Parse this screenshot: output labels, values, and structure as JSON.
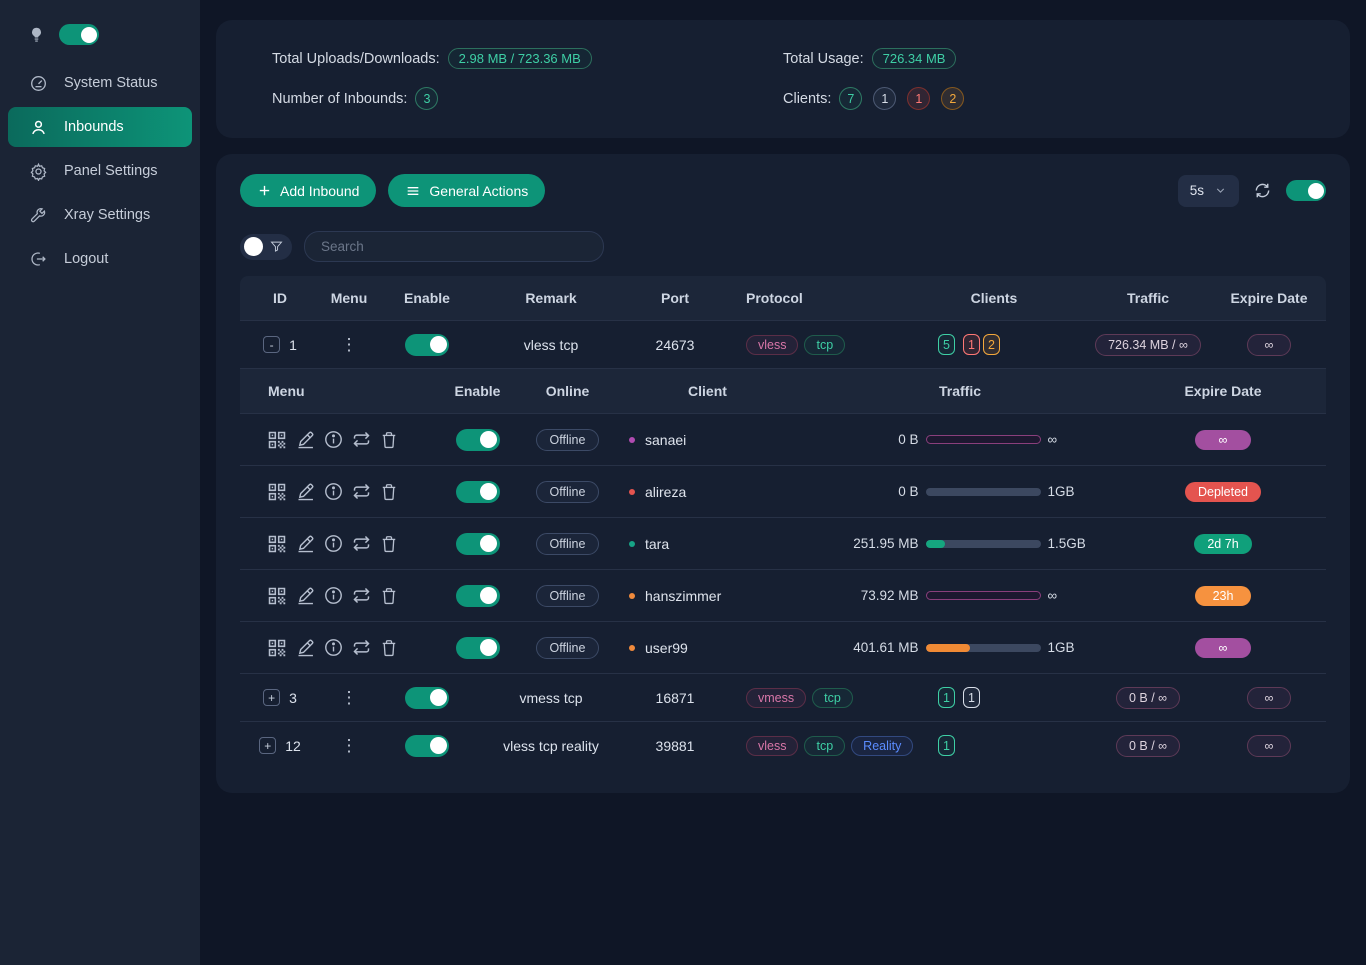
{
  "sidebar": {
    "theme_toggle_on": true,
    "items": [
      {
        "label": "System Status",
        "icon": "dashboard-icon",
        "active": false
      },
      {
        "label": "Inbounds",
        "icon": "user-icon",
        "active": true
      },
      {
        "label": "Panel Settings",
        "icon": "gear-icon",
        "active": false
      },
      {
        "label": "Xray Settings",
        "icon": "wrench-icon",
        "active": false
      },
      {
        "label": "Logout",
        "icon": "logout-icon",
        "active": false
      }
    ]
  },
  "summary": {
    "uploads_label": "Total Uploads/Downloads:",
    "uploads_value": "2.98 MB / 723.36 MB",
    "inbounds_label": "Number of Inbounds:",
    "inbounds_value": "3",
    "usage_label": "Total Usage:",
    "usage_value": "726.34 MB",
    "clients_label": "Clients:",
    "client_counts": [
      {
        "value": "7",
        "color": "green"
      },
      {
        "value": "1",
        "color": "gray"
      },
      {
        "value": "1",
        "color": "red"
      },
      {
        "value": "2",
        "color": "orange"
      }
    ]
  },
  "toolbar": {
    "add_inbound": "Add Inbound",
    "general_actions": "General Actions",
    "refresh_interval": "5s",
    "auto_refresh_on": true
  },
  "search": {
    "placeholder": "Search"
  },
  "table": {
    "headers": [
      "ID",
      "Menu",
      "Enable",
      "Remark",
      "Port",
      "Protocol",
      "Clients",
      "Traffic",
      "Expire Date"
    ],
    "menu_dots": "⋮",
    "rows": [
      {
        "id": "1",
        "expander": "-",
        "enabled": true,
        "remark": "vless tcp",
        "port": "24673",
        "protocols": [
          {
            "label": "vless",
            "style": "pink"
          },
          {
            "label": "tcp",
            "style": "green"
          }
        ],
        "clients": [
          {
            "value": "5",
            "color": "green"
          },
          {
            "value": "1",
            "color": "red"
          },
          {
            "value": "2",
            "color": "orange"
          }
        ],
        "traffic": "726.34 MB / ∞",
        "expire": "∞",
        "expanded": true
      },
      {
        "id": "3",
        "expander": "+",
        "enabled": true,
        "remark": "vmess tcp",
        "port": "16871",
        "protocols": [
          {
            "label": "vmess",
            "style": "pink"
          },
          {
            "label": "tcp",
            "style": "green"
          }
        ],
        "clients": [
          {
            "value": "1",
            "color": "green"
          },
          {
            "value": "1",
            "color": "gray"
          }
        ],
        "traffic": "0 B / ∞",
        "expire": "∞",
        "expanded": false
      },
      {
        "id": "12",
        "expander": "+",
        "enabled": true,
        "remark": "vless tcp reality",
        "port": "39881",
        "protocols": [
          {
            "label": "vless",
            "style": "pink"
          },
          {
            "label": "tcp",
            "style": "green"
          },
          {
            "label": "Reality",
            "style": "blue"
          }
        ],
        "clients": [
          {
            "value": "1",
            "color": "green"
          }
        ],
        "traffic": "0 B / ∞",
        "expire": "∞",
        "expanded": false
      }
    ]
  },
  "client_table": {
    "headers": [
      "Menu",
      "Enable",
      "Online",
      "Client",
      "Traffic",
      "Expire Date"
    ],
    "menu_icons": [
      "qrcode-icon",
      "edit-icon",
      "info-icon",
      "reset-traffic-icon",
      "delete-icon"
    ],
    "online_status": "Offline",
    "rows": [
      {
        "name": "sanaei",
        "dot_color": "#b14bb1",
        "enabled": true,
        "used": "0 B",
        "limit": "∞",
        "bar": "unlimited",
        "percent": 0,
        "bar_color": "",
        "expire": {
          "text": "∞",
          "style": "purple"
        }
      },
      {
        "name": "alireza",
        "dot_color": "#e4544f",
        "enabled": true,
        "used": "0 B",
        "limit": "1GB",
        "bar": "normal",
        "percent": 0,
        "bar_color": "#15a67f",
        "expire": {
          "text": "Depleted",
          "style": "red"
        }
      },
      {
        "name": "tara",
        "dot_color": "#16a486",
        "enabled": true,
        "used": "251.95 MB",
        "limit": "1.5GB",
        "bar": "normal",
        "percent": 17,
        "bar_color": "#15a67f",
        "expire": {
          "text": "2d 7h",
          "style": "green"
        }
      },
      {
        "name": "hanszimmer",
        "dot_color": "#f08a3c",
        "enabled": true,
        "used": "73.92 MB",
        "limit": "∞",
        "bar": "unlimited",
        "percent": 0,
        "bar_color": "",
        "expire": {
          "text": "23h",
          "style": "orange"
        }
      },
      {
        "name": "user99",
        "dot_color": "#f08a3c",
        "enabled": true,
        "used": "401.61 MB",
        "limit": "1GB",
        "bar": "normal",
        "percent": 39,
        "bar_color": "#f08a35",
        "expire": {
          "text": "∞",
          "style": "purple"
        }
      }
    ]
  }
}
